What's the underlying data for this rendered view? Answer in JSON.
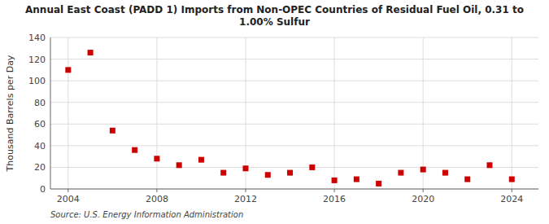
{
  "chart_data": {
    "type": "scatter",
    "title": "Annual East Coast (PADD 1) Imports from Non-OPEC Countries of Residual Fuel Oil, 0.31 to\n1.00%  Sulfur",
    "y_label": "Thousand Barrels per Day",
    "annotations": [
      "Source: U.S. Energy Information Administration"
    ],
    "x": [
      2004,
      2005,
      2006,
      2007,
      2008,
      2009,
      2010,
      2011,
      2012,
      2013,
      2014,
      2015,
      2016,
      2017,
      2018,
      2019,
      2020,
      2021,
      2022,
      2023,
      2024
    ],
    "values": [
      110,
      126,
      54,
      36,
      28,
      22,
      27,
      15,
      19,
      13,
      15,
      20,
      8,
      9,
      5,
      15,
      18,
      15,
      9,
      22,
      9
    ],
    "color": "#cc0000",
    "marker": "square",
    "xlim": [
      2003.2,
      2025.2
    ],
    "xticks": [
      2004,
      2008,
      2012,
      2016,
      2020,
      2024
    ],
    "ylim": [
      0,
      140
    ],
    "yticks": [
      0,
      20,
      40,
      60,
      80,
      100,
      120,
      140
    ],
    "grid": true
  }
}
